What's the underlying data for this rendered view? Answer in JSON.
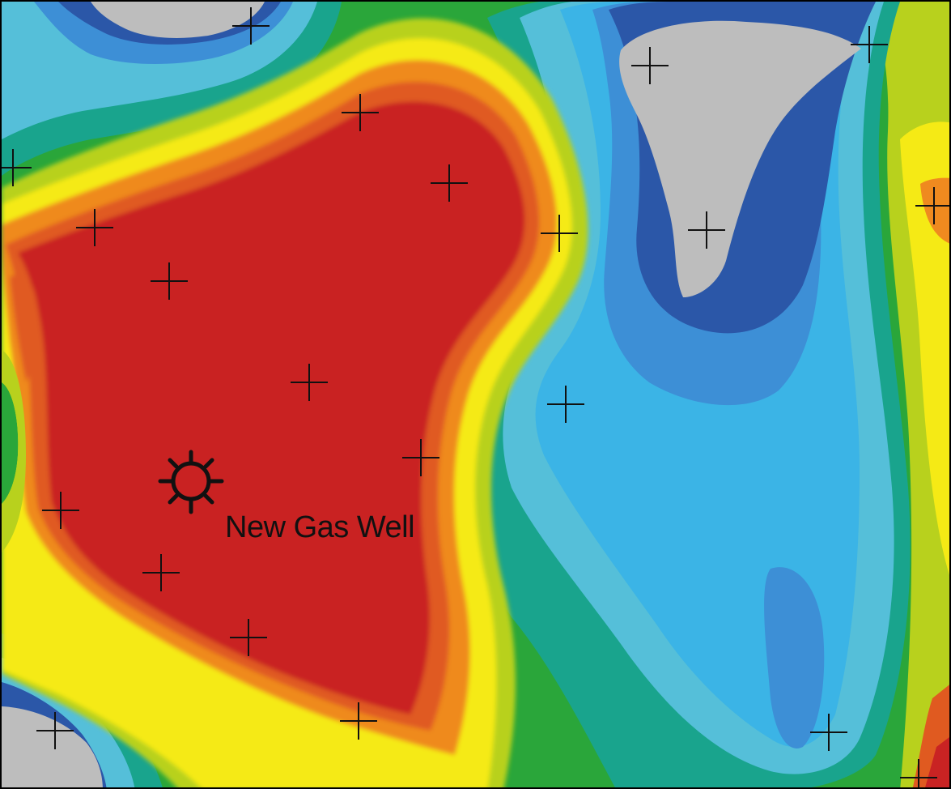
{
  "map": {
    "well_label": "New Gas Well",
    "well_icon": "gas-well-symbol-icon",
    "marker_icon": "data-point-cross-icon",
    "colors": {
      "grey": "#bdbdbd",
      "dark_blue": "#2b57a8",
      "blue": "#3d8fd6",
      "light_blue": "#3bb4e6",
      "cyan": "#55bfd9",
      "teal_green": "#19a48d",
      "green": "#2aa63a",
      "yellow_green": "#b8d11d",
      "yellow": "#f5ea15",
      "orange": "#ef8a1f",
      "red_orange": "#e05a20",
      "red": "#c92323"
    }
  }
}
